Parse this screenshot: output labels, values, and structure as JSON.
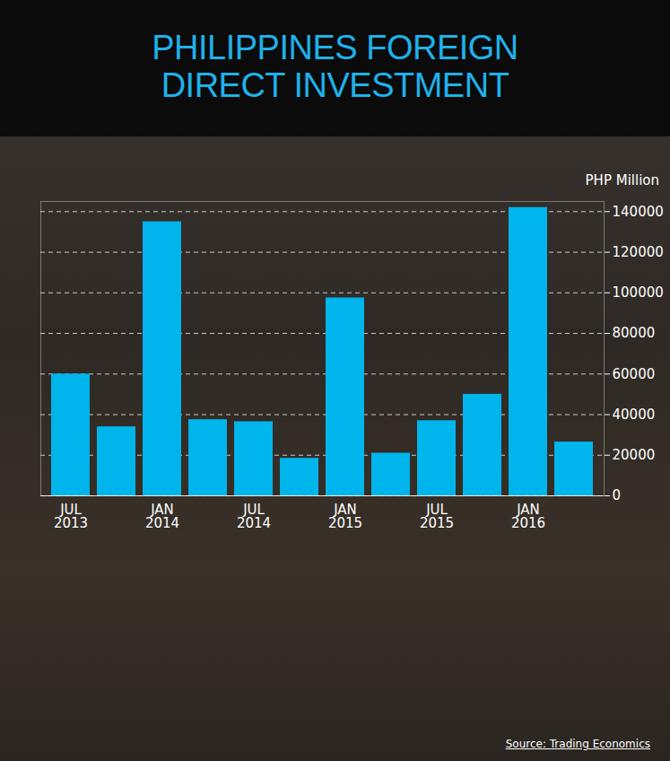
{
  "chart_data": {
    "type": "bar",
    "title": "PHILIPPINES FOREIGN DIRECT INVESTMENT",
    "y_label": "PHP Million",
    "source": "Source: Trading Economics",
    "categories": [
      "JUL 2013",
      null,
      "JAN 2014",
      null,
      "JUL 2014",
      null,
      "JAN 2015",
      null,
      "JUL 2015",
      null,
      "JAN 2016",
      null
    ],
    "values": [
      60000,
      34000,
      135000,
      37500,
      36500,
      18500,
      97500,
      21000,
      37000,
      50000,
      142000,
      26500
    ],
    "color": "#00b4ec",
    "ylim": [
      0,
      145000
    ],
    "yticks": [
      0,
      20000,
      40000,
      60000,
      80000,
      100000,
      120000,
      140000
    ],
    "grid": true
  }
}
